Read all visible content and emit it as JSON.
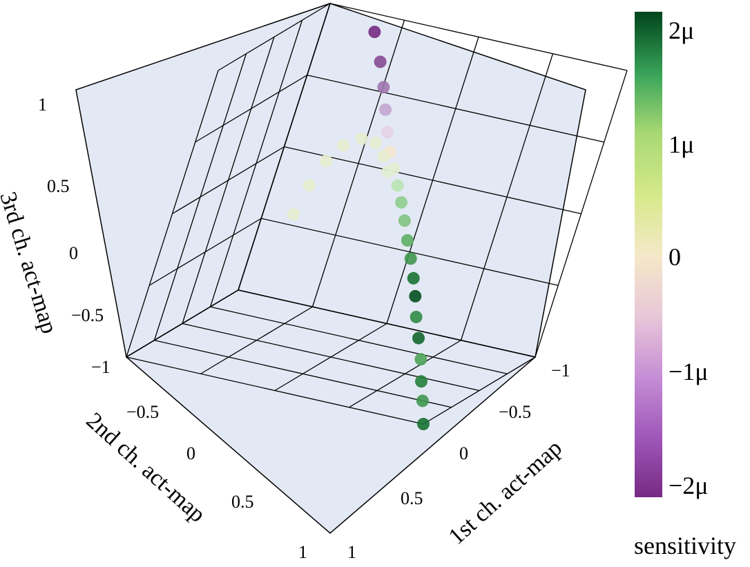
{
  "chart_data": {
    "type": "scatter",
    "projection": "3d",
    "xlabel": "1st ch. act-map",
    "ylabel": "2nd ch. act-map",
    "zlabel": "3rd ch. act-map",
    "xlim": [
      -1,
      1
    ],
    "ylim": [
      -1,
      1
    ],
    "zlim": [
      -1,
      1
    ],
    "x_ticks": [
      "−1",
      "−0.5",
      "0",
      "0.5",
      "1"
    ],
    "y_ticks": [
      "−1",
      "−0.5",
      "0",
      "0.5",
      "1"
    ],
    "z_ticks": [
      "−0.5",
      "0",
      "0.5",
      "1"
    ],
    "grid": true,
    "colorbar": {
      "label": "sensitivity",
      "ticks": [
        "2μ",
        "1μ",
        "0",
        "−1μ",
        "−2μ"
      ],
      "range": [
        -2,
        2
      ],
      "colormap": "PRGn",
      "colors": [
        "#762a83",
        "#9970ab",
        "#c2a5cf",
        "#e7d4e8",
        "#f5e9c8",
        "#d9f0d3",
        "#a6dba0",
        "#5aae61",
        "#1b7837",
        "#00441b"
      ]
    },
    "series": [
      {
        "points": [
          [
            1.0,
            1.0,
            -1.0,
            1.6
          ],
          [
            0.92,
            0.9,
            -0.88,
            1.3
          ],
          [
            0.85,
            0.82,
            -0.78,
            1.5
          ],
          [
            0.78,
            0.74,
            -0.66,
            1.2
          ],
          [
            0.7,
            0.66,
            -0.55,
            1.7
          ],
          [
            0.62,
            0.58,
            -0.44,
            1.4
          ],
          [
            0.55,
            0.5,
            -0.33,
            1.9
          ],
          [
            0.48,
            0.42,
            -0.24,
            1.6
          ],
          [
            0.4,
            0.34,
            -0.14,
            1.3
          ],
          [
            0.32,
            0.26,
            -0.05,
            1.1
          ],
          [
            0.24,
            0.18,
            0.05,
            0.9
          ],
          [
            0.16,
            0.1,
            0.14,
            0.8
          ],
          [
            0.08,
            0.02,
            0.22,
            0.5
          ],
          [
            0.0,
            -0.06,
            0.3,
            0.1
          ],
          [
            -0.08,
            -0.14,
            0.38,
            -0.3
          ],
          [
            -0.16,
            -0.22,
            0.48,
            -0.7
          ],
          [
            -0.24,
            -0.3,
            0.6,
            -1.1
          ],
          [
            -0.32,
            -0.38,
            0.72,
            -1.5
          ],
          [
            -0.42,
            -0.48,
            0.85,
            -1.8
          ],
          [
            -0.55,
            -0.6,
            1.0,
            -2.0
          ],
          [
            -0.1,
            -0.3,
            0.2,
            0.1
          ],
          [
            -0.2,
            -0.45,
            0.25,
            0.0
          ],
          [
            -0.32,
            -0.6,
            0.28,
            0.0
          ],
          [
            -0.45,
            -0.72,
            0.25,
            0.0
          ],
          [
            -0.58,
            -0.82,
            0.15,
            0.0
          ],
          [
            -0.68,
            -0.9,
            0.0,
            0.0
          ],
          [
            -0.75,
            -0.95,
            -0.2,
            0.0
          ],
          [
            -0.8,
            -0.98,
            -0.42,
            0.0
          ]
        ]
      }
    ]
  }
}
